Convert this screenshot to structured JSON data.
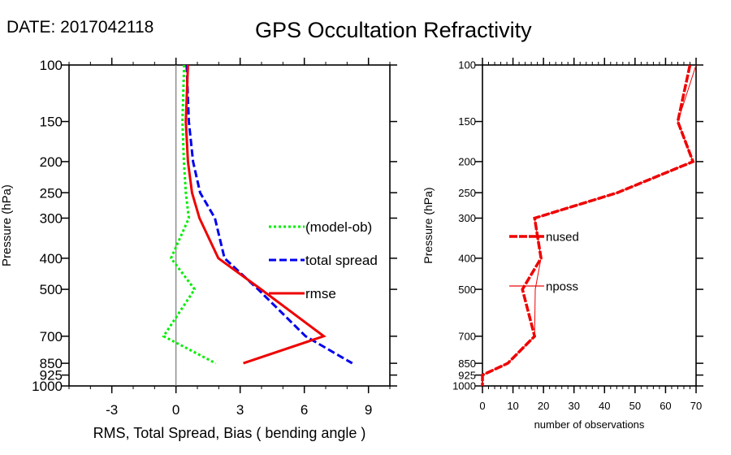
{
  "header": {
    "date_label": "DATE: 2017042118",
    "title": "GPS Occultation Refractivity"
  },
  "chart_data": [
    {
      "type": "line",
      "name": "stats-panel",
      "xlabel": "RMS, Total Spread, Bias ( bending angle )",
      "ylabel": "Pressure (hPa)",
      "xlim": [
        -5,
        10
      ],
      "ylim": [
        1000,
        100
      ],
      "yscale": "log",
      "x_ticks": [
        -3,
        0,
        3,
        6,
        9
      ],
      "x_tick_labels": [
        "-3",
        "0",
        "3",
        "6",
        "9"
      ],
      "x_minor_step": 1,
      "y_ticks": [
        100,
        150,
        200,
        250,
        300,
        400,
        500,
        700,
        850,
        925,
        1000
      ],
      "y_tick_labels": [
        "100",
        "150",
        "200",
        "250",
        "300",
        "400",
        "500",
        "700",
        "850",
        "925",
        "1000"
      ],
      "reference_line_x": 0,
      "legend_placement": "center-right",
      "y": [
        100,
        150,
        200,
        250,
        300,
        400,
        500,
        700,
        850
      ],
      "series": [
        {
          "name": "(model-ob)",
          "color": "#00ee00",
          "style": "dotted",
          "values": [
            0.38,
            0.3,
            0.37,
            0.46,
            0.6,
            -0.23,
            0.87,
            -0.58,
            1.86
          ]
        },
        {
          "name": "total spread",
          "color": "#0000ee",
          "style": "dashed",
          "values": [
            0.5,
            0.6,
            0.8,
            1.13,
            1.82,
            2.27,
            3.84,
            6.06,
            8.24
          ]
        },
        {
          "name": "rmse",
          "color": "#ee0000",
          "style": "solid",
          "values": [
            0.56,
            0.46,
            0.56,
            0.75,
            1.1,
            1.98,
            3.98,
            6.91,
            3.15
          ]
        }
      ]
    },
    {
      "type": "line",
      "name": "count-panel",
      "xlabel": "number of observations",
      "ylabel": "Pressure (hPa)",
      "xlim": [
        0,
        70
      ],
      "ylim": [
        1000,
        100
      ],
      "yscale": "log",
      "x_ticks": [
        0,
        10,
        20,
        30,
        40,
        50,
        60,
        70
      ],
      "x_tick_labels": [
        "0",
        "10",
        "20",
        "30",
        "40",
        "50",
        "60",
        "70"
      ],
      "x_minor_step": 2,
      "y_ticks": [
        100,
        150,
        200,
        250,
        300,
        400,
        500,
        700,
        850,
        925,
        1000
      ],
      "y_tick_labels": [
        "100",
        "150",
        "200",
        "250",
        "300",
        "400",
        "500",
        "700",
        "850",
        "925",
        "1000"
      ],
      "legend_placement": "center-left",
      "y": [
        100,
        150,
        200,
        250,
        300,
        400,
        500,
        700,
        850,
        925,
        1000
      ],
      "series": [
        {
          "name": "nused",
          "color": "#ee0000",
          "style": "dashed-thick",
          "values": [
            68,
            64,
            69,
            44.2,
            17.1,
            19.2,
            13.1,
            17.1,
            8.3,
            0,
            0
          ]
        },
        {
          "name": "nposs",
          "color": "#ee0000",
          "style": "thin",
          "values": [
            70,
            64,
            69,
            44.2,
            17.1,
            19.2,
            17.3,
            17.1,
            8.3,
            0,
            0
          ]
        }
      ]
    }
  ]
}
